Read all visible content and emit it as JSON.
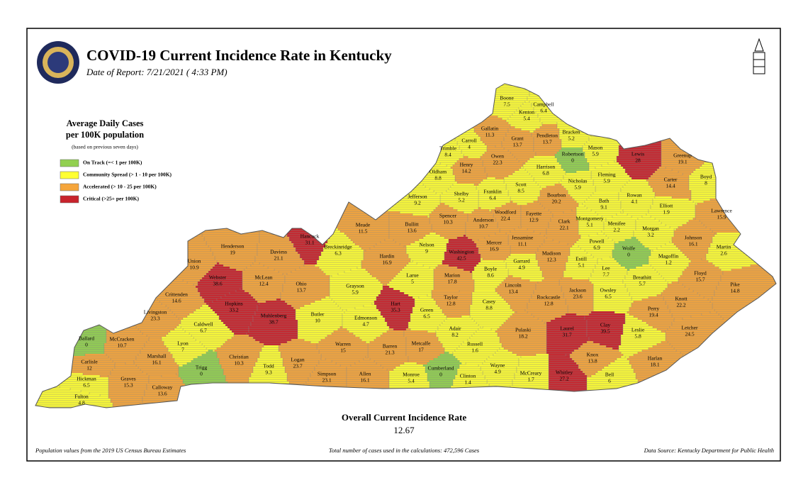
{
  "header": {
    "title": "COVID-19 Current Incidence Rate in Kentucky",
    "date": "Date of Report: 7/21/2021 ( 4:33 PM)"
  },
  "legend": {
    "title": [
      "Average Daily Cases",
      "per 100K population"
    ],
    "note": "(based on previous seven days)",
    "items": [
      {
        "label": "On Track (=< 1 per 100K)",
        "color": "#92d050",
        "max": 1
      },
      {
        "label": "Community Spread (> 1 - 10 per 100K)",
        "color": "#ffff33",
        "max": 10
      },
      {
        "label": "Accelerated (> 10 - 25 per 100K)",
        "color": "#f5a53b",
        "max": 25
      },
      {
        "label": "Critical (>25+ per 100K)",
        "color": "#c8232c"
      }
    ]
  },
  "counties": [
    {
      "name": "Boone",
      "value": 7.5
    },
    {
      "name": "Kenton",
      "value": 5.4
    },
    {
      "name": "Campbell",
      "value": 6.4
    },
    {
      "name": "Gallatin",
      "value": 11.3
    },
    {
      "name": "Carroll",
      "value": 4
    },
    {
      "name": "Grant",
      "value": 13.7
    },
    {
      "name": "Pendleton",
      "value": 13.7
    },
    {
      "name": "Bracken",
      "value": 5.2
    },
    {
      "name": "Trimble",
      "value": 8.4
    },
    {
      "name": "Robertson",
      "value": 0
    },
    {
      "name": "Mason",
      "value": 5.9
    },
    {
      "name": "Lewis",
      "value": 28
    },
    {
      "name": "Greenup",
      "value": 19.1
    },
    {
      "name": "Owen",
      "value": 22.3
    },
    {
      "name": "Henry",
      "value": 14.2
    },
    {
      "name": "Oldham",
      "value": 8.8
    },
    {
      "name": "Harrison",
      "value": 6.8
    },
    {
      "name": "Fleming",
      "value": 5.9
    },
    {
      "name": "Carter",
      "value": 14.4
    },
    {
      "name": "Boyd",
      "value": 8
    },
    {
      "name": "Scott",
      "value": 8.5
    },
    {
      "name": "Nicholas",
      "value": 5.9
    },
    {
      "name": "Franklin",
      "value": 6.4
    },
    {
      "name": "Shelby",
      "value": 5.2
    },
    {
      "name": "Jefferson",
      "value": 9.2
    },
    {
      "name": "Bourbon",
      "value": 20.2
    },
    {
      "name": "Bath",
      "value": 9.1
    },
    {
      "name": "Rowan",
      "value": 4.1
    },
    {
      "name": "Elliott",
      "value": 1.9
    },
    {
      "name": "Lawrence",
      "value": 15.9
    },
    {
      "name": "Woodford",
      "value": 22.4
    },
    {
      "name": "Fayette",
      "value": 12.9
    },
    {
      "name": "Montgomery",
      "value": 5.1
    },
    {
      "name": "Spencer",
      "value": 10.3
    },
    {
      "name": "Anderson",
      "value": 10.7
    },
    {
      "name": "Clark",
      "value": 22.1
    },
    {
      "name": "Menifee",
      "value": 2.2
    },
    {
      "name": "Morgan",
      "value": 3.2
    },
    {
      "name": "Meade",
      "value": 11.5
    },
    {
      "name": "Bullitt",
      "value": 13.6
    },
    {
      "name": "Hancock",
      "value": 31.1
    },
    {
      "name": "Jessamine",
      "value": 11.1
    },
    {
      "name": "Johnson",
      "value": 16.1
    },
    {
      "name": "Martin",
      "value": 2.6
    },
    {
      "name": "Henderson",
      "value": 19
    },
    {
      "name": "Breckinridge",
      "value": 6.3
    },
    {
      "name": "Nelson",
      "value": 9
    },
    {
      "name": "Washington",
      "value": 42.5
    },
    {
      "name": "Mercer",
      "value": 16.9
    },
    {
      "name": "Powell",
      "value": 6.9
    },
    {
      "name": "Wolfe",
      "value": 0
    },
    {
      "name": "Daviess",
      "value": 21.1
    },
    {
      "name": "Union",
      "value": 10.9
    },
    {
      "name": "Hardin",
      "value": 16.9
    },
    {
      "name": "Madison",
      "value": 12.3
    },
    {
      "name": "Estill",
      "value": 5.1
    },
    {
      "name": "Magoffin",
      "value": 1.2
    },
    {
      "name": "Garrard",
      "value": 4.9
    },
    {
      "name": "Boyle",
      "value": 8.6
    },
    {
      "name": "Lee",
      "value": 7.7
    },
    {
      "name": "Webster",
      "value": 38.6
    },
    {
      "name": "McLean",
      "value": 12.4
    },
    {
      "name": "Larue",
      "value": 5
    },
    {
      "name": "Marion",
      "value": 17.8
    },
    {
      "name": "Breathitt",
      "value": 5.7
    },
    {
      "name": "Floyd",
      "value": 15.7
    },
    {
      "name": "Ohio",
      "value": 13.7
    },
    {
      "name": "Grayson",
      "value": 5.9
    },
    {
      "name": "Lincoln",
      "value": 13.4
    },
    {
      "name": "Owsley",
      "value": 6.5
    },
    {
      "name": "Jackson",
      "value": 23.6
    },
    {
      "name": "Pike",
      "value": 14.8
    },
    {
      "name": "Crittenden",
      "value": 14.6
    },
    {
      "name": "Rockcastle",
      "value": 12.8
    },
    {
      "name": "Taylor",
      "value": 12.8
    },
    {
      "name": "Knott",
      "value": 22.2
    },
    {
      "name": "Hopkins",
      "value": 33.2
    },
    {
      "name": "Hart",
      "value": 35.3
    },
    {
      "name": "Casey",
      "value": 8.8
    },
    {
      "name": "Perry",
      "value": 19.4
    },
    {
      "name": "Livingston",
      "value": 23.3
    },
    {
      "name": "Muhlenberg",
      "value": 38.7
    },
    {
      "name": "Butler",
      "value": 10
    },
    {
      "name": "Edmonson",
      "value": 4.7
    },
    {
      "name": "Green",
      "value": 6.5
    },
    {
      "name": "Laurel",
      "value": 31.7
    },
    {
      "name": "Clay",
      "value": 39.5
    },
    {
      "name": "Letcher",
      "value": 24.5
    },
    {
      "name": "Leslie",
      "value": 5.8
    },
    {
      "name": "Caldwell",
      "value": 6.7
    },
    {
      "name": "Adair",
      "value": 8.2
    },
    {
      "name": "Pulaski",
      "value": 18.2
    },
    {
      "name": "Ballard",
      "value": 0
    },
    {
      "name": "McCracken",
      "value": 10.7
    },
    {
      "name": "Lyon",
      "value": 7
    },
    {
      "name": "Barren",
      "value": 21.3
    },
    {
      "name": "Metcalfe",
      "value": 17
    },
    {
      "name": "Russell",
      "value": 1.6
    },
    {
      "name": "Warren",
      "value": 15
    },
    {
      "name": "Marshall",
      "value": 16.1
    },
    {
      "name": "Christian",
      "value": 10.3
    },
    {
      "name": "Knox",
      "value": 13.8
    },
    {
      "name": "Harlan",
      "value": 18.1
    },
    {
      "name": "Logan",
      "value": 23.7
    },
    {
      "name": "Carlisle",
      "value": 12
    },
    {
      "name": "Trigg",
      "value": 0
    },
    {
      "name": "Todd",
      "value": 9.3
    },
    {
      "name": "Wayne",
      "value": 4.9
    },
    {
      "name": "Cumberland",
      "value": 0
    },
    {
      "name": "Whitley",
      "value": 27.2
    },
    {
      "name": "Bell",
      "value": 6
    },
    {
      "name": "Simpson",
      "value": 23.1
    },
    {
      "name": "Allen",
      "value": 16.1
    },
    {
      "name": "Monroe",
      "value": 5.4
    },
    {
      "name": "Clinton",
      "value": 1.4
    },
    {
      "name": "McCreary",
      "value": 1.7
    },
    {
      "name": "Graves",
      "value": 15.3
    },
    {
      "name": "Hickman",
      "value": 6.5
    },
    {
      "name": "Calloway",
      "value": 13.6
    },
    {
      "name": "Fulton",
      "value": 4.8
    }
  ],
  "overall": {
    "label": "Overall Current Incidence Rate",
    "value": 12.67
  },
  "footer": {
    "left": "Population values from the 2019 US Census Bureau Estimates",
    "center": "Total number of cases used in the calculations: 472,596 Cases",
    "right": "Data Source: Kentucky Department for Public Health"
  }
}
